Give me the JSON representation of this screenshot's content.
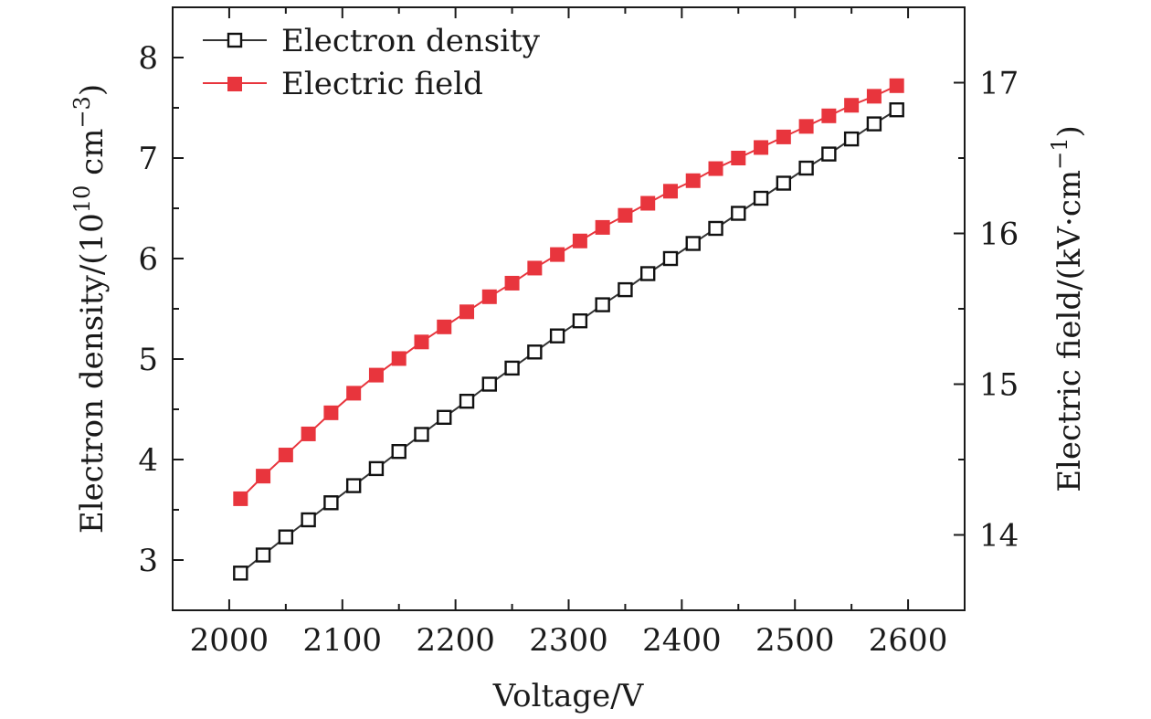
{
  "chart_data": {
    "type": "line",
    "title": "",
    "xlabel": "Voltage/V",
    "ylabel_left": "Electron density/(10",
    "ylabel_left_sup": "10",
    "ylabel_left_unit": " cm",
    "ylabel_left_sup2": "−3",
    "ylabel_left_close": ")",
    "ylabel_right": "Electric field/(kV·cm",
    "ylabel_right_sup": "−1",
    "ylabel_right_close": ")",
    "xlim": [
      1950,
      2650
    ],
    "ylim_left": [
      2.5,
      8.5
    ],
    "ylim_right": [
      13.5,
      17.5
    ],
    "x_ticks": [
      2000,
      2100,
      2200,
      2300,
      2400,
      2500,
      2600
    ],
    "x_tick_labels": [
      "2000",
      "2100",
      "2200",
      "2300",
      "2400",
      "2500",
      "2600"
    ],
    "y_left_ticks": [
      3,
      4,
      5,
      6,
      7,
      8
    ],
    "y_left_tick_labels": [
      "3",
      "4",
      "5",
      "6",
      "7",
      "8"
    ],
    "y_right_ticks": [
      14,
      15,
      16,
      17
    ],
    "y_right_tick_labels": [
      "14",
      "15",
      "16",
      "17"
    ],
    "legend_position": "top-left",
    "x": [
      2010,
      2030,
      2050,
      2070,
      2090,
      2110,
      2130,
      2150,
      2170,
      2190,
      2210,
      2230,
      2250,
      2270,
      2290,
      2310,
      2330,
      2350,
      2370,
      2390,
      2410,
      2430,
      2450,
      2470,
      2490,
      2510,
      2530,
      2550,
      2570,
      2590
    ],
    "series": [
      {
        "name": "Electron density",
        "axis": "left",
        "color": "#333333",
        "marker": "open-square",
        "values": [
          2.87,
          3.05,
          3.23,
          3.4,
          3.57,
          3.74,
          3.91,
          4.08,
          4.25,
          4.42,
          4.58,
          4.75,
          4.91,
          5.07,
          5.23,
          5.38,
          5.54,
          5.69,
          5.85,
          6.0,
          6.15,
          6.3,
          6.45,
          6.6,
          6.75,
          6.9,
          7.04,
          7.19,
          7.34,
          7.48
        ]
      },
      {
        "name": "Electric field",
        "axis": "right",
        "color": "#e8353d",
        "marker": "filled-square",
        "values": [
          14.24,
          14.39,
          14.53,
          14.67,
          14.81,
          14.94,
          15.06,
          15.17,
          15.28,
          15.38,
          15.48,
          15.58,
          15.67,
          15.77,
          15.86,
          15.95,
          16.04,
          16.12,
          16.2,
          16.28,
          16.35,
          16.43,
          16.5,
          16.57,
          16.64,
          16.71,
          16.78,
          16.85,
          16.91,
          16.98
        ]
      }
    ]
  }
}
